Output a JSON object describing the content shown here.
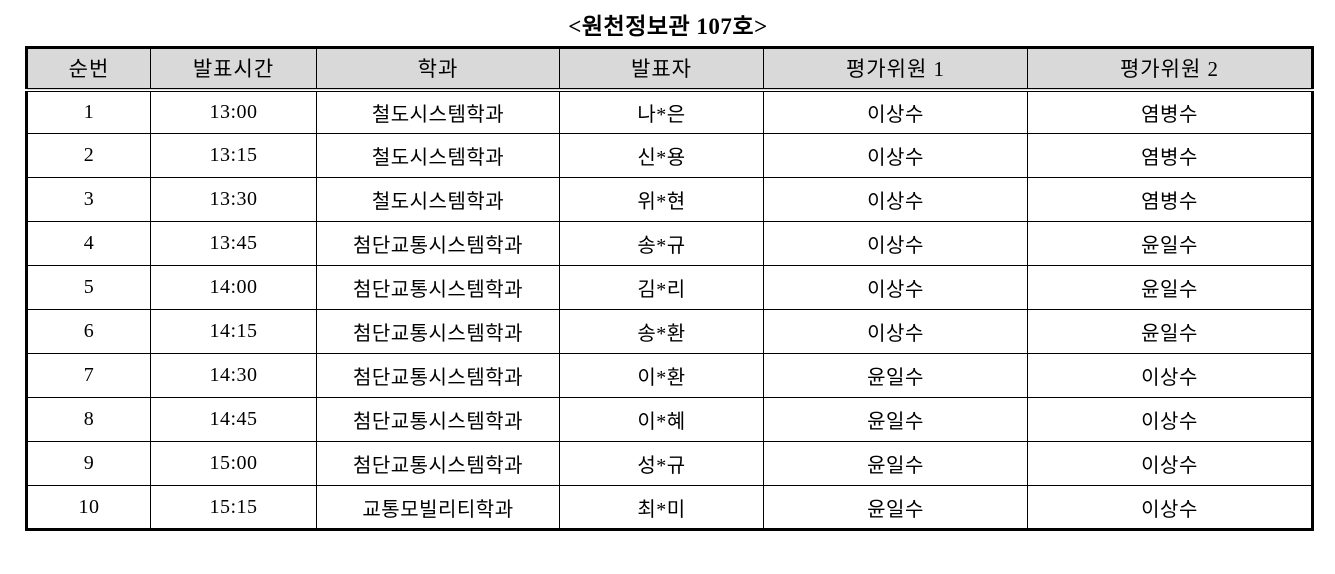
{
  "title": "<원천정보관 107호>",
  "table": {
    "headers": [
      "순번",
      "발표시간",
      "학과",
      "발표자",
      "평가위원 1",
      "평가위원 2"
    ],
    "rows": [
      [
        "1",
        "13:00",
        "철도시스템학과",
        "나*은",
        "이상수",
        "염병수"
      ],
      [
        "2",
        "13:15",
        "철도시스템학과",
        "신*용",
        "이상수",
        "염병수"
      ],
      [
        "3",
        "13:30",
        "철도시스템학과",
        "위*현",
        "이상수",
        "염병수"
      ],
      [
        "4",
        "13:45",
        "첨단교통시스템학과",
        "송*규",
        "이상수",
        "윤일수"
      ],
      [
        "5",
        "14:00",
        "첨단교통시스템학과",
        "김*리",
        "이상수",
        "윤일수"
      ],
      [
        "6",
        "14:15",
        "첨단교통시스템학과",
        "송*환",
        "이상수",
        "윤일수"
      ],
      [
        "7",
        "14:30",
        "첨단교통시스템학과",
        "이*환",
        "윤일수",
        "이상수"
      ],
      [
        "8",
        "14:45",
        "첨단교통시스템학과",
        "이*혜",
        "윤일수",
        "이상수"
      ],
      [
        "9",
        "15:00",
        "첨단교통시스템학과",
        "성*규",
        "윤일수",
        "이상수"
      ],
      [
        "10",
        "15:15",
        "교통모빌리티학과",
        "최*미",
        "윤일수",
        "이상수"
      ]
    ],
    "colors": {
      "header_bg": "#d9d9d9",
      "border": "#000000"
    }
  }
}
